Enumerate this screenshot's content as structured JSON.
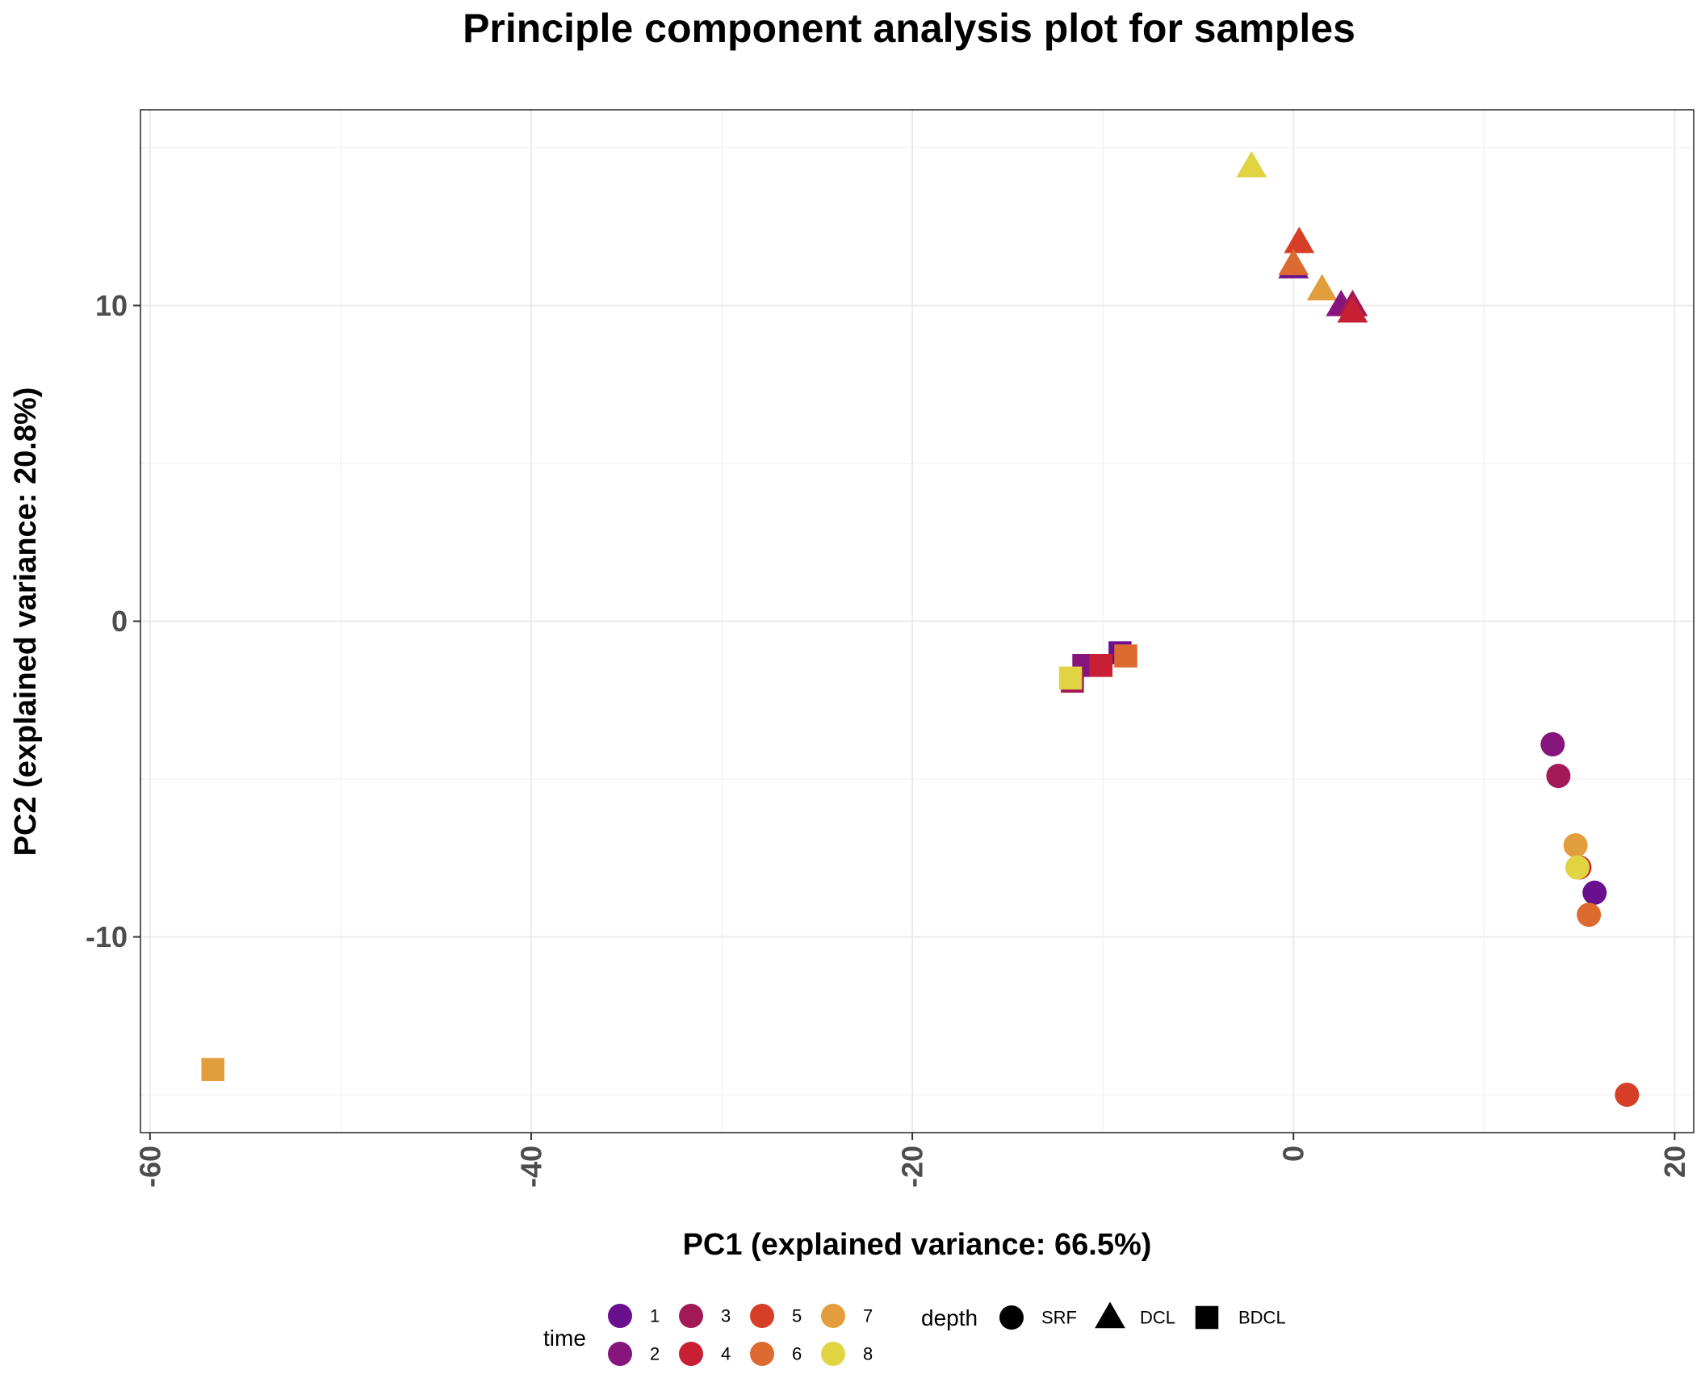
{
  "chart_data": {
    "type": "scatter",
    "title": "Principle component analysis plot for samples",
    "xlabel": "PC1 (explained variance: 66.5%)",
    "ylabel": "PC2 (explained variance: 20.8%)",
    "xlim": [
      -60.5,
      21
    ],
    "ylim": [
      -16.2,
      16.2
    ],
    "x_ticks": [
      -60,
      -40,
      -20,
      0,
      20
    ],
    "x_tick_labels": [
      "-60",
      "-40",
      "-20",
      "0",
      "20"
    ],
    "y_ticks": [
      -10,
      0,
      10
    ],
    "y_tick_labels": [
      "-10",
      "0",
      "10"
    ],
    "x_minor": [
      -50,
      -30,
      -10,
      10
    ],
    "y_minor": [
      -15,
      -5,
      5,
      15
    ],
    "grid": true,
    "legend_position": "bottom",
    "color_legend": {
      "title": "time",
      "entries": [
        {
          "label": "1",
          "color": "#6a0f8e"
        },
        {
          "label": "2",
          "color": "#86157d"
        },
        {
          "label": "3",
          "color": "#a31857"
        },
        {
          "label": "4",
          "color": "#c81f34"
        },
        {
          "label": "5",
          "color": "#d63e27"
        },
        {
          "label": "6",
          "color": "#dd6a30"
        },
        {
          "label": "7",
          "color": "#e29e3d"
        },
        {
          "label": "8",
          "color": "#e0d443"
        }
      ]
    },
    "shape_legend": {
      "title": "depth",
      "entries": [
        {
          "label": "SRF",
          "shape": "circle"
        },
        {
          "label": "DCL",
          "shape": "triangle"
        },
        {
          "label": "BDCL",
          "shape": "square"
        }
      ]
    },
    "points": [
      {
        "x": -2.2,
        "y": 14.4,
        "time": "8",
        "depth": "DCL"
      },
      {
        "x": 0.3,
        "y": 12.0,
        "time": "5",
        "depth": "DCL"
      },
      {
        "x": 0.0,
        "y": 11.2,
        "time": "1",
        "depth": "DCL"
      },
      {
        "x": 0.0,
        "y": 11.3,
        "time": "6",
        "depth": "DCL"
      },
      {
        "x": 1.5,
        "y": 10.5,
        "time": "7",
        "depth": "DCL"
      },
      {
        "x": 2.5,
        "y": 10.0,
        "time": "2",
        "depth": "DCL"
      },
      {
        "x": 3.1,
        "y": 10.0,
        "time": "3",
        "depth": "DCL"
      },
      {
        "x": 3.1,
        "y": 9.8,
        "time": "4",
        "depth": "DCL"
      },
      {
        "x": -9.1,
        "y": -1.0,
        "time": "1",
        "depth": "BDCL"
      },
      {
        "x": -11.0,
        "y": -1.4,
        "time": "2",
        "depth": "BDCL"
      },
      {
        "x": -11.6,
        "y": -1.9,
        "time": "3",
        "depth": "BDCL"
      },
      {
        "x": -10.1,
        "y": -1.4,
        "time": "4",
        "depth": "BDCL"
      },
      {
        "x": -8.8,
        "y": -1.1,
        "time": "6",
        "depth": "BDCL"
      },
      {
        "x": -56.7,
        "y": -14.2,
        "time": "7",
        "depth": "BDCL"
      },
      {
        "x": -11.7,
        "y": -1.8,
        "time": "8",
        "depth": "BDCL"
      },
      {
        "x": 15.8,
        "y": -8.6,
        "time": "1",
        "depth": "SRF"
      },
      {
        "x": 13.6,
        "y": -3.9,
        "time": "2",
        "depth": "SRF"
      },
      {
        "x": 13.9,
        "y": -4.9,
        "time": "3",
        "depth": "SRF"
      },
      {
        "x": 15.0,
        "y": -7.8,
        "time": "4",
        "depth": "SRF"
      },
      {
        "x": 17.5,
        "y": -15.0,
        "time": "5",
        "depth": "SRF"
      },
      {
        "x": 15.5,
        "y": -9.3,
        "time": "6",
        "depth": "SRF"
      },
      {
        "x": 14.8,
        "y": -7.1,
        "time": "7",
        "depth": "SRF"
      },
      {
        "x": 14.9,
        "y": -7.8,
        "time": "8",
        "depth": "SRF"
      }
    ]
  }
}
